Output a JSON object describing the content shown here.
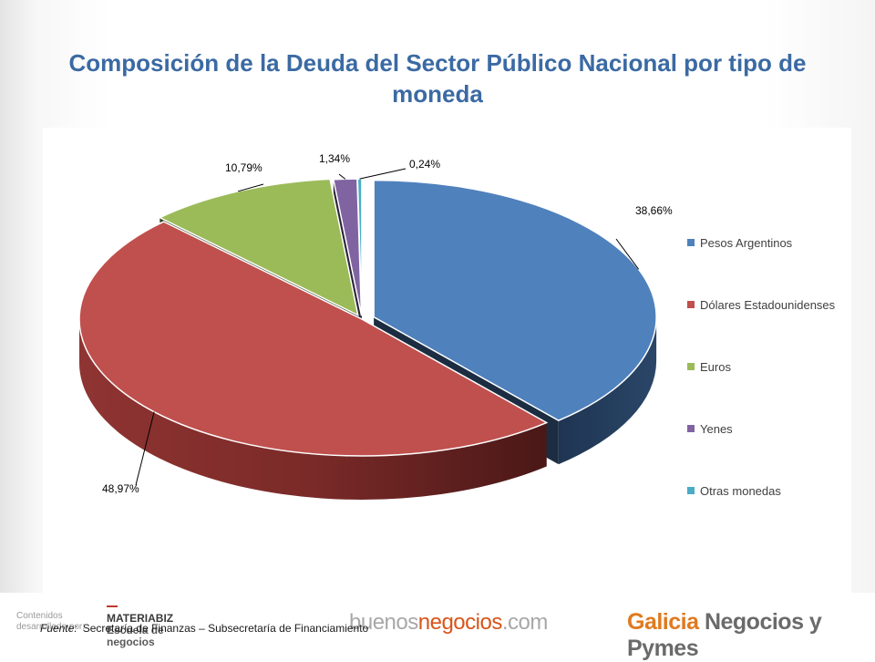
{
  "title": "Composición de la Deuda del Sector Público Nacional por tipo de moneda",
  "chart_data": {
    "type": "pie",
    "title": "Composición de la Deuda del Sector Público Nacional por tipo de moneda",
    "series": [
      {
        "name": "Pesos Argentinos",
        "value": 38.66,
        "label": "38,66%",
        "color": "#4f81bd"
      },
      {
        "name": "Dólares Estadounidenses",
        "value": 48.97,
        "label": "48,97%",
        "color": "#c0504d"
      },
      {
        "name": "Euros",
        "value": 10.79,
        "label": "10,79%",
        "color": "#9bbb59"
      },
      {
        "name": "Yenes",
        "value": 1.34,
        "label": "1,34%",
        "color": "#8064a2"
      },
      {
        "name": "Otras monedas",
        "value": 0.24,
        "label": "0,24%",
        "color": "#4bacc6"
      }
    ],
    "legend_position": "right",
    "style": "3d-exploded"
  },
  "footer": {
    "source_label": "Fuente:",
    "source_text": "Secretaría de Finanzas – Subsecretaría de Financiamiento",
    "credit_line1": "Contenidos",
    "credit_line2": "desarrollado por:",
    "materiabiz_line1": "MATERIABIZ",
    "materiabiz_line2": "Escuela de",
    "materiabiz_line3": "negocios",
    "bn_part1": "buenos",
    "bn_part2": "negocios",
    "bn_part3": ".com",
    "galicia_part1": "Galicia",
    "galicia_part2": " Negocios y Pymes"
  }
}
